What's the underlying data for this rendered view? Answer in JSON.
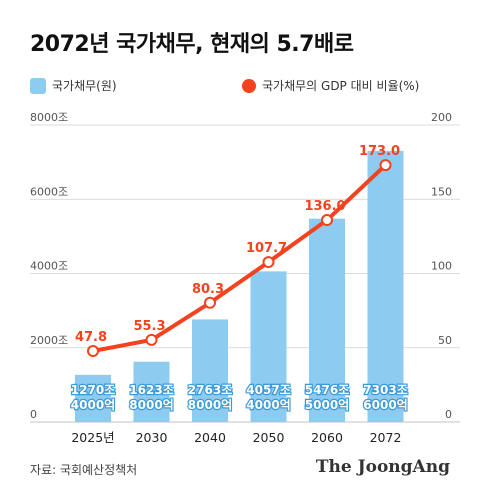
{
  "title": "2072년 국가채무, 현재의 5.7배로",
  "legend": {
    "bar_label": "국가채무(원)",
    "line_label": "국가채무의 GDP 대비 비율(%)"
  },
  "colors": {
    "bar": "#8ecbf0",
    "line": "#f4411e",
    "grid": "#cfcfcf",
    "axis_text": "#555555",
    "bar_label": "#ffffff",
    "bar_label_stroke": "#3a9ad9"
  },
  "footer": {
    "source": "자료: 국회예산정책처",
    "brand": "The JoongAng"
  },
  "chart_data": {
    "type": "bar+line",
    "categories": [
      "2025년",
      "2030",
      "2040",
      "2050",
      "2060",
      "2072"
    ],
    "grid": true,
    "legend_position": "top",
    "left_axis": {
      "ticks": [
        0,
        2000,
        4000,
        6000,
        8000
      ],
      "tick_labels": [
        "0",
        "2000조",
        "4000조",
        "6000조",
        "8000조"
      ],
      "ylim": [
        0,
        8000
      ]
    },
    "right_axis": {
      "ticks": [
        0,
        50,
        100,
        150,
        200
      ],
      "tick_labels": [
        "0",
        "50",
        "100",
        "150",
        "200"
      ],
      "ylim": [
        0,
        200
      ]
    },
    "series": [
      {
        "name": "국가채무(원)",
        "kind": "bar",
        "axis": "left",
        "values": [
          1270.4,
          1623.8,
          2763.8,
          4057.4,
          5476.5,
          7303.6
        ],
        "labels": [
          [
            "1270조",
            "4000억"
          ],
          [
            "1623조",
            "8000억"
          ],
          [
            "2763조",
            "8000억"
          ],
          [
            "4057조",
            "4000억"
          ],
          [
            "5476조",
            "5000억"
          ],
          [
            "7303조",
            "6000억"
          ]
        ]
      },
      {
        "name": "국가채무의 GDP 대비 비율(%)",
        "kind": "line",
        "axis": "right",
        "values": [
          47.8,
          55.3,
          80.3,
          107.7,
          136.0,
          173.0
        ],
        "labels": [
          "47.8",
          "55.3",
          "80.3",
          "107.7",
          "136.0",
          "173.0"
        ]
      }
    ]
  }
}
